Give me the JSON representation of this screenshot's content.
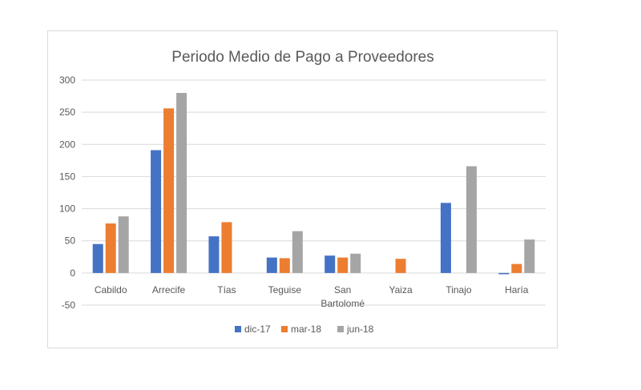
{
  "chart_data": {
    "type": "bar",
    "title": "Periodo Medio de Pago a Proveedores",
    "xlabel": "",
    "ylabel": "",
    "ylim": [
      -50,
      300
    ],
    "yticks": [
      300,
      250,
      200,
      150,
      100,
      50,
      0,
      -50
    ],
    "grid": true,
    "legend_position": "bottom",
    "categories": [
      [
        "Cabildo"
      ],
      [
        "Arrecife"
      ],
      [
        "Tías"
      ],
      [
        "Teguise"
      ],
      [
        "San",
        "Bartolomé"
      ],
      [
        "Yaiza"
      ],
      [
        "Tinajo"
      ],
      [
        "Haría"
      ]
    ],
    "series": [
      {
        "name": "dic-17",
        "color": "#4472c4",
        "values": [
          45,
          191,
          57,
          24,
          27,
          null,
          109,
          -2
        ]
      },
      {
        "name": "mar-18",
        "color": "#ed7d31",
        "values": [
          77,
          256,
          79,
          23,
          24,
          22,
          null,
          14
        ]
      },
      {
        "name": "jun-18",
        "color": "#a5a5a5",
        "values": [
          88,
          280,
          null,
          65,
          30,
          null,
          166,
          52
        ]
      }
    ]
  }
}
